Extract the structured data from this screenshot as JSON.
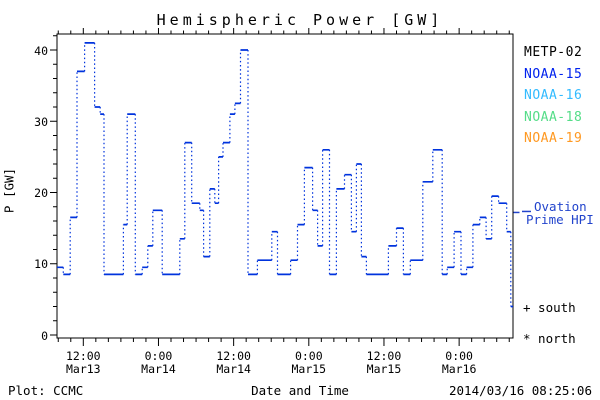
{
  "title": "Hemispheric Power [GW]",
  "axes": {
    "ylabel": "P [GW]",
    "xlabel": "Date and Time",
    "y_ticks": [
      0,
      10,
      20,
      30,
      40
    ],
    "y_minor_step": 2,
    "y_range_gw": [
      0,
      42.5
    ],
    "x_tick_hours": [
      12,
      24,
      36,
      48,
      60,
      72
    ],
    "x_tick_labels": [
      {
        "time": "12:00",
        "date": "Mar13"
      },
      {
        "time": "0:00",
        "date": "Mar14"
      },
      {
        "time": "12:00",
        "date": "Mar14"
      },
      {
        "time": "0:00",
        "date": "Mar15"
      },
      {
        "time": "12:00",
        "date": "Mar15"
      },
      {
        "time": "0:00",
        "date": "Mar16"
      }
    ],
    "x_minor_step_hours": 2,
    "x_range_hours": [
      7.8,
      80.6
    ]
  },
  "legend": {
    "satellites": [
      {
        "label": "METP-02",
        "color": "#000000"
      },
      {
        "label": "NOAA-15",
        "color": "#0022ee"
      },
      {
        "label": "NOAA-16",
        "color": "#33bbff"
      },
      {
        "label": "NOAA-18",
        "color": "#55dd88"
      },
      {
        "label": "NOAA-19",
        "color": "#ff9922"
      }
    ],
    "ovation": {
      "dash": "—",
      "line1": "Ovation",
      "line2": "Prime HPI",
      "color": "#2244cc",
      "axis_marker_value_gw": 17.2
    },
    "markers": {
      "south": "+ south",
      "north": "* north"
    }
  },
  "footer": {
    "credit": "Plot: CCMC",
    "timestamp": "2014/03/16 08:25:06"
  },
  "chart_data": {
    "type": "line",
    "style": "steps-post",
    "title": "Hemispheric Power [GW]",
    "xlabel": "Date and Time",
    "ylabel": "P [GW]",
    "ylim": [
      0,
      42.5
    ],
    "x_unit": "hours since 2014-03-13 00:00",
    "grid": false,
    "legend_position": "right-outside",
    "series": [
      {
        "name": "Ovation Prime HPI",
        "color": "#0033dd",
        "steps": [
          [
            7.8,
            9.5
          ],
          [
            8.8,
            8.5
          ],
          [
            9.9,
            16.5
          ],
          [
            11.0,
            37
          ],
          [
            12.2,
            41
          ],
          [
            13.8,
            32
          ],
          [
            14.7,
            31
          ],
          [
            15.3,
            8.5
          ],
          [
            18.4,
            15.5
          ],
          [
            19.0,
            31
          ],
          [
            20.3,
            8.5
          ],
          [
            21.4,
            9.5
          ],
          [
            22.3,
            12.5
          ],
          [
            23.1,
            17.5
          ],
          [
            24.6,
            8.5
          ],
          [
            27.4,
            13.5
          ],
          [
            28.2,
            27
          ],
          [
            29.3,
            18.5
          ],
          [
            30.6,
            17.5
          ],
          [
            31.2,
            11
          ],
          [
            32.2,
            20.5
          ],
          [
            33.0,
            18.5
          ],
          [
            33.6,
            25
          ],
          [
            34.3,
            27
          ],
          [
            35.4,
            31
          ],
          [
            36.2,
            32.5
          ],
          [
            37.1,
            40
          ],
          [
            38.3,
            8.5
          ],
          [
            39.8,
            10.5
          ],
          [
            42.1,
            14.5
          ],
          [
            43.0,
            8.5
          ],
          [
            45.1,
            10.5
          ],
          [
            46.2,
            15.5
          ],
          [
            47.3,
            23.5
          ],
          [
            48.6,
            17.5
          ],
          [
            49.4,
            12.5
          ],
          [
            50.2,
            26
          ],
          [
            51.3,
            8.5
          ],
          [
            52.4,
            20.5
          ],
          [
            53.7,
            22.5
          ],
          [
            54.8,
            14.5
          ],
          [
            55.6,
            24
          ],
          [
            56.4,
            11
          ],
          [
            57.2,
            8.5
          ],
          [
            60.7,
            12.5
          ],
          [
            62.0,
            15
          ],
          [
            63.1,
            8.5
          ],
          [
            64.2,
            10.5
          ],
          [
            66.2,
            21.5
          ],
          [
            67.8,
            26
          ],
          [
            69.3,
            8.5
          ],
          [
            70.1,
            9.5
          ],
          [
            71.2,
            14.5
          ],
          [
            72.3,
            8.5
          ],
          [
            73.2,
            9.5
          ],
          [
            74.2,
            15.5
          ],
          [
            75.3,
            16.5
          ],
          [
            76.3,
            13.5
          ],
          [
            77.2,
            19.5
          ],
          [
            78.3,
            18.5
          ],
          [
            79.6,
            14.5
          ],
          [
            80.25,
            4
          ],
          [
            80.55,
            4
          ]
        ]
      }
    ]
  }
}
